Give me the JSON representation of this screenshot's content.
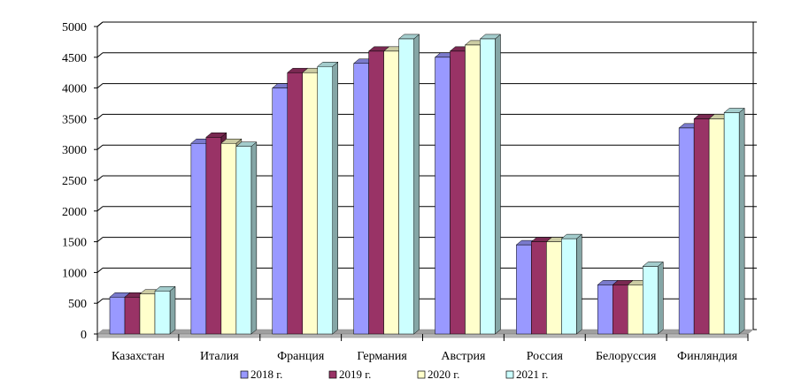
{
  "chart_data": {
    "type": "bar",
    "style": "3d",
    "categories": [
      "Казахстан",
      "Италия",
      "Франция",
      "Германия",
      "Австрия",
      "Россия",
      "Белоруссия",
      "Финляндия"
    ],
    "series": [
      {
        "name": "2018 г.",
        "color": "#9999FF",
        "values": [
          600,
          3100,
          4000,
          4400,
          4500,
          1450,
          800,
          3350
        ]
      },
      {
        "name": "2019 г.",
        "color": "#993366",
        "values": [
          600,
          3200,
          4250,
          4600,
          4600,
          1500,
          800,
          3500
        ]
      },
      {
        "name": "2020 г.",
        "color": "#FFFFCC",
        "values": [
          650,
          3100,
          4250,
          4600,
          4700,
          1500,
          800,
          3500
        ]
      },
      {
        "name": "2021 г.",
        "color": "#CCFFFF",
        "values": [
          700,
          3050,
          4350,
          4800,
          4800,
          1550,
          1100,
          3600
        ]
      }
    ],
    "yticks": [
      0,
      500,
      1000,
      1500,
      2000,
      2500,
      3000,
      3500,
      4000,
      4500,
      5000
    ],
    "ylim": [
      0,
      5000
    ],
    "grid": true,
    "legend": "bottom",
    "title": "",
    "xlabel": "",
    "ylabel": ""
  }
}
